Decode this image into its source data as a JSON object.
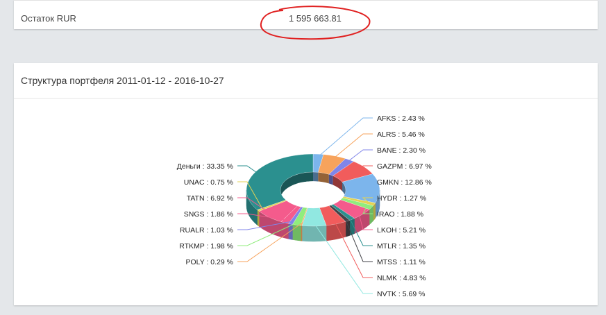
{
  "balance": {
    "label": "Остаток RUR",
    "value": "1 595 663.81"
  },
  "portfolio": {
    "title": "Структура портфеля 2011-01-12 - 2016-10-27"
  },
  "chart_data": {
    "type": "pie",
    "variant": "3d-donut",
    "title": "Структура портфеля 2011-01-12 - 2016-10-27",
    "slices": [
      {
        "name": "AFKS",
        "value": 2.43,
        "label": "AFKS : 2.43 %",
        "color": "#7cb5ec"
      },
      {
        "name": "ALRS",
        "value": 5.46,
        "label": "ALRS : 5.46 %",
        "color": "#f7a35c"
      },
      {
        "name": "BANE",
        "value": 2.3,
        "label": "BANE : 2.30 %",
        "color": "#8085e9"
      },
      {
        "name": "GAZPM",
        "value": 6.97,
        "label": "GAZPM : 6.97 %",
        "color": "#f15c5c"
      },
      {
        "name": "GMKN",
        "value": 12.86,
        "label": "GMKN : 12.86 %",
        "color": "#7cb5ec"
      },
      {
        "name": "HYDR",
        "value": 1.27,
        "label": "HYDR : 1.27 %",
        "color": "#e4d354"
      },
      {
        "name": "IRAO",
        "value": 1.88,
        "label": "IRAO : 1.88 %",
        "color": "#90ed7d"
      },
      {
        "name": "LKOH",
        "value": 5.21,
        "label": "LKOH : 5.21 %",
        "color": "#f45b8c"
      },
      {
        "name": "MTLR",
        "value": 1.35,
        "label": "MTLR : 1.35 %",
        "color": "#2b908f"
      },
      {
        "name": "MTSS",
        "value": 1.11,
        "label": "MTSS : 1.11 %",
        "color": "#434348"
      },
      {
        "name": "NLMK",
        "value": 4.83,
        "label": "NLMK : 4.83 %",
        "color": "#f15c5c"
      },
      {
        "name": "NVTK",
        "value": 5.69,
        "label": "NVTK : 5.69 %",
        "color": "#91e8e1"
      },
      {
        "name": "POLY",
        "value": 0.29,
        "label": "POLY : 0.29 %",
        "color": "#f7a35c"
      },
      {
        "name": "RTKMP",
        "value": 1.98,
        "label": "RTKMP : 1.98 %",
        "color": "#90ed7d"
      },
      {
        "name": "RUALR",
        "value": 1.03,
        "label": "RUALR : 1.03 %",
        "color": "#8085e9"
      },
      {
        "name": "SNGS",
        "value": 1.86,
        "label": "SNGS : 1.86 %",
        "color": "#f45b8c"
      },
      {
        "name": "TATN",
        "value": 6.92,
        "label": "TATN : 6.92 %",
        "color": "#f45b8c"
      },
      {
        "name": "UNAC",
        "value": 0.75,
        "label": "UNAC : 0.75 %",
        "color": "#e4d354"
      },
      {
        "name": "Деньги",
        "value": 33.35,
        "label": "Деньги : 33.35 %",
        "color": "#2b908f"
      }
    ],
    "annotation_color": "#e02020"
  }
}
